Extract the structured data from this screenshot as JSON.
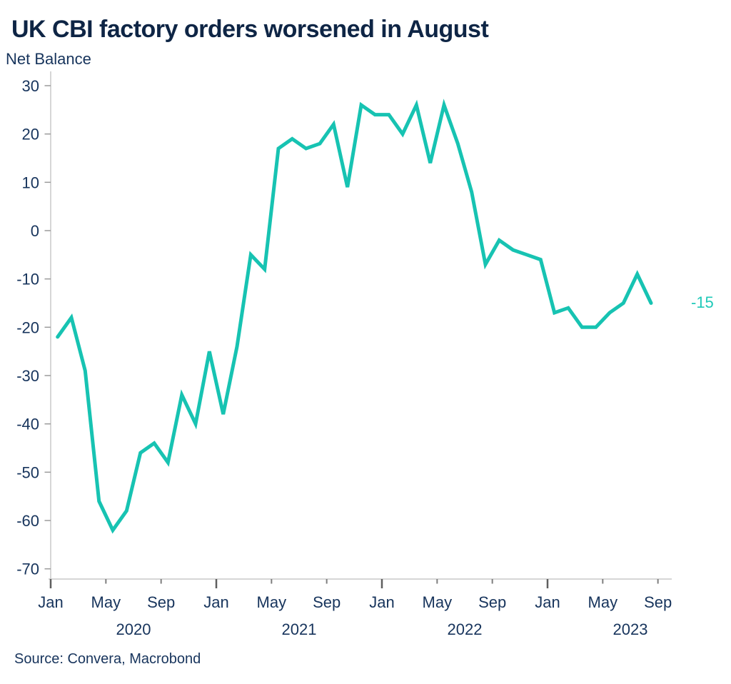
{
  "header": {
    "title": "UK CBI factory orders worsened in August",
    "subtitle": "Net Balance"
  },
  "footer": {
    "source": "Source: Convera, Macrobond"
  },
  "annotation": {
    "last_value_label": "-15"
  },
  "colors": {
    "line": "#17c3b2",
    "title_text": "#0e2545",
    "label_text": "#17345c",
    "axis_line": "#c9c9c9",
    "x_tick_major": "#5f5f5f",
    "x_tick_minor": "#7e7e7e",
    "y_tick": "#9b9b9b",
    "annotation_text": "#1fc9b8"
  },
  "chart_data": {
    "type": "line",
    "title": "UK CBI factory orders worsened in August",
    "ylabel": "Net Balance",
    "xlabel": "",
    "ylim": [
      -70,
      30
    ],
    "yticks": [
      30,
      20,
      10,
      0,
      -10,
      -20,
      -30,
      -40,
      -50,
      -60,
      -70
    ],
    "grid": false,
    "legend": "none",
    "series_name": "UK CBI factory orders net balance",
    "x": [
      "Jan 2020",
      "Feb 2020",
      "Mar 2020",
      "Apr 2020",
      "May 2020",
      "Jun 2020",
      "Jul 2020",
      "Aug 2020",
      "Sep 2020",
      "Oct 2020",
      "Nov 2020",
      "Dec 2020",
      "Jan 2021",
      "Feb 2021",
      "Mar 2021",
      "Apr 2021",
      "May 2021",
      "Jun 2021",
      "Jul 2021",
      "Aug 2021",
      "Sep 2021",
      "Oct 2021",
      "Nov 2021",
      "Dec 2021",
      "Jan 2022",
      "Feb 2022",
      "Mar 2022",
      "Apr 2022",
      "May 2022",
      "Jun 2022",
      "Jul 2022",
      "Aug 2022",
      "Sep 2022",
      "Oct 2022",
      "Nov 2022",
      "Dec 2022",
      "Jan 2023",
      "Feb 2023",
      "Mar 2023",
      "Apr 2023",
      "May 2023",
      "Jun 2023",
      "Jul 2023",
      "Aug 2023"
    ],
    "values": [
      -22,
      -18,
      -29,
      -56,
      -62,
      -58,
      -46,
      -44,
      -48,
      -34,
      -40,
      -25,
      -38,
      -24,
      -5,
      -8,
      17,
      19,
      17,
      18,
      22,
      9,
      26,
      24,
      24,
      20,
      26,
      14,
      26,
      18,
      8,
      -7,
      -2,
      -4,
      -5,
      -6,
      -17,
      -16,
      -20,
      -20,
      -17,
      -15,
      -9,
      -15
    ],
    "x_ticks": [
      {
        "label": "Jan",
        "month_index": 0,
        "major": true
      },
      {
        "label": "May",
        "month_index": 4,
        "major": false
      },
      {
        "label": "Sep",
        "month_index": 8,
        "major": false
      },
      {
        "label": "Jan",
        "month_index": 12,
        "major": true
      },
      {
        "label": "May",
        "month_index": 16,
        "major": false
      },
      {
        "label": "Sep",
        "month_index": 20,
        "major": false
      },
      {
        "label": "Jan",
        "month_index": 24,
        "major": true
      },
      {
        "label": "May",
        "month_index": 28,
        "major": false
      },
      {
        "label": "Sep",
        "month_index": 32,
        "major": false
      },
      {
        "label": "Jan",
        "month_index": 36,
        "major": true
      },
      {
        "label": "May",
        "month_index": 40,
        "major": false
      },
      {
        "label": "Sep",
        "month_index": 44,
        "major": false
      }
    ],
    "year_labels": [
      {
        "label": "2020",
        "month_index": 6
      },
      {
        "label": "2021",
        "month_index": 18
      },
      {
        "label": "2022",
        "month_index": 30
      },
      {
        "label": "2023",
        "month_index": 42
      }
    ],
    "last_point_label": "-15"
  }
}
